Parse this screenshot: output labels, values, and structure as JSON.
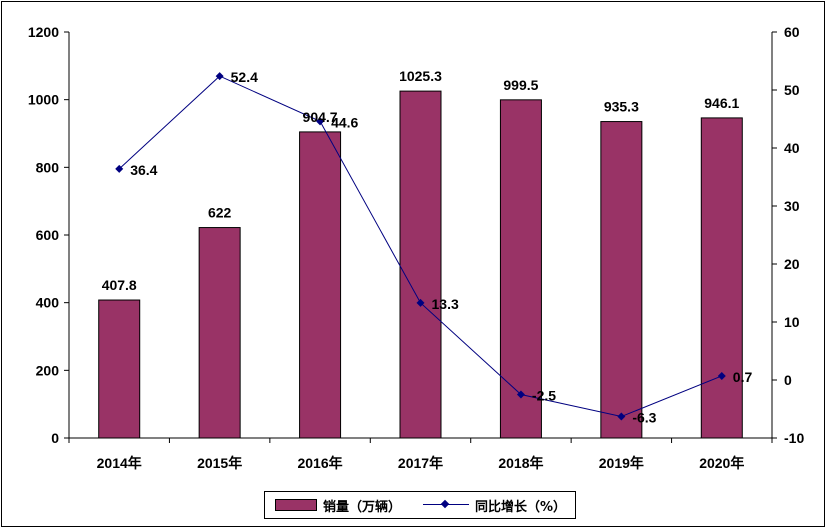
{
  "chart_data": {
    "type": "bar",
    "categories": [
      "2014年",
      "2015年",
      "2016年",
      "2017年",
      "2018年",
      "2019年",
      "2020年"
    ],
    "series": [
      {
        "name": "销量（万辆）",
        "type": "bar",
        "axis": "left",
        "color": "#993366",
        "values": [
          407.8,
          622,
          904.7,
          1025.3,
          999.5,
          935.3,
          946.1
        ],
        "labels": [
          "407.8",
          "622",
          "904.7",
          "1025.3",
          "999.5",
          "935.3",
          "946.1"
        ]
      },
      {
        "name": "同比增长（%）",
        "type": "line",
        "axis": "right",
        "color": "#000080",
        "marker": "diamond",
        "values": [
          36.4,
          52.4,
          44.6,
          13.3,
          -2.5,
          -6.3,
          0.7
        ],
        "labels": [
          "36.4",
          "52.4",
          "44.6",
          "13.3",
          "-2.5",
          "-6.3",
          "0.7"
        ]
      }
    ],
    "y_left": {
      "min": 0,
      "max": 1200,
      "ticks": [
        0,
        200,
        400,
        600,
        800,
        1000,
        1200
      ]
    },
    "y_right": {
      "min": -10,
      "max": 60,
      "ticks": [
        -10,
        0,
        10,
        20,
        30,
        40,
        50,
        60
      ]
    },
    "title": "",
    "xlabel": "",
    "ylabel": "",
    "grid": false,
    "legend_position": "bottom"
  }
}
